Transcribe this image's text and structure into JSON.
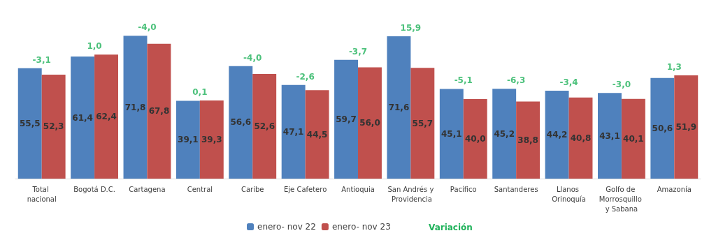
{
  "chart_data": {
    "type": "bar",
    "categories": [
      "Total nacional",
      "Bogotá D.C.",
      "Cartagena",
      "Central",
      "Caribe",
      "Eje Cafetero",
      "Antioquia",
      "San Andrés y Providencia",
      "Pacífico",
      "Santanderes",
      "Llanos Orinoquía",
      "Golfo de Morrosquillo y Sabana",
      "Amazonía"
    ],
    "series": [
      {
        "name": "enero- nov 22",
        "color": "#4f81bd",
        "values": [
          55.5,
          61.4,
          71.8,
          39.1,
          56.6,
          47.1,
          59.7,
          71.6,
          45.1,
          45.2,
          44.2,
          43.1,
          50.6
        ],
        "value_labels": [
          "55,5",
          "61,4",
          "71,8",
          "39,1",
          "56,6",
          "47,1",
          "59,7",
          "71,6",
          "45,1",
          "45,2",
          "44,2",
          "43,1",
          "50,6"
        ]
      },
      {
        "name": "enero- nov 23",
        "color": "#c0504d",
        "values": [
          52.3,
          62.4,
          67.8,
          39.3,
          52.6,
          44.5,
          56.0,
          55.7,
          40.0,
          38.8,
          40.8,
          40.1,
          51.9
        ],
        "value_labels": [
          "52,3",
          "62,4",
          "67,8",
          "39,3",
          "52,6",
          "44,5",
          "56,0",
          "55,7",
          "40,0",
          "38,8",
          "40,8",
          "40,1",
          "51,9"
        ]
      }
    ],
    "legend": "bottom",
    "legend_title": "Variación",
    "annotations": [
      {
        "text": "-3,1",
        "x": "Total nacional",
        "y": 55.5
      },
      {
        "text": "1,0",
        "x": "Bogotá D.C.",
        "y": 62.4
      },
      {
        "text": "-4,0",
        "x": "Cartagena",
        "y": 71.8
      },
      {
        "text": "0,1",
        "x": "Central",
        "y": 39.3
      },
      {
        "text": "-4,0",
        "x": "Caribe",
        "y": 56.6
      },
      {
        "text": "-2,6",
        "x": "Eje Cafetero",
        "y": 47.1
      },
      {
        "text": "-3,7",
        "x": "Antioquia",
        "y": 59.7
      },
      {
        "text": "15,9",
        "x": "San Andrés y Providencia",
        "y": 71.6
      },
      {
        "text": "-5,1",
        "x": "Pacífico",
        "y": 45.1
      },
      {
        "text": "-6,3",
        "x": "Santanderes",
        "y": 45.2
      },
      {
        "text": "-3,4",
        "x": "Llanos Orinoquía",
        "y": 44.2
      },
      {
        "text": "-3,0",
        "x": "Golfo de Morrosquillo y Sabana",
        "y": 43.1
      },
      {
        "text": "1,3",
        "x": "Amazonía",
        "y": 51.9
      }
    ]
  }
}
